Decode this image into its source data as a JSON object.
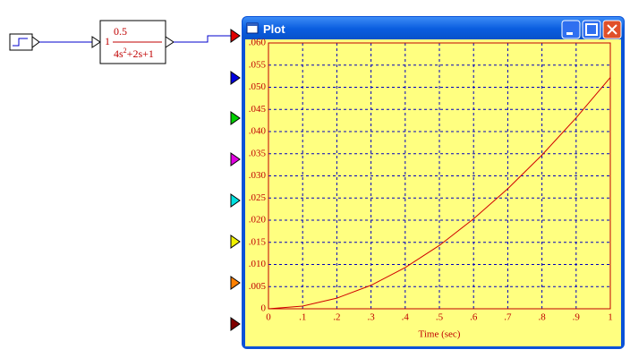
{
  "diagram": {
    "gain_block": {
      "gain": "1",
      "numerator": "0.5",
      "denominator": {
        "base": "4s",
        "exponent": "2",
        "rest": "+2s+1"
      }
    }
  },
  "window": {
    "title": "Plot"
  },
  "chart_data": {
    "type": "line",
    "xlabel": "Time (sec)",
    "x": [
      0,
      0.1,
      0.2,
      0.3,
      0.4,
      0.5,
      0.6,
      0.7,
      0.8,
      0.9,
      1
    ],
    "series": [
      {
        "color": "#d00000",
        "values": [
          0,
          0.0006,
          0.0024,
          0.0053,
          0.0093,
          0.0143,
          0.0203,
          0.0271,
          0.0347,
          0.0431,
          0.0522
        ]
      }
    ],
    "xlim": [
      0,
      1
    ],
    "ylim": [
      0,
      0.06
    ],
    "xticks": [
      0,
      {
        "value": 0.1,
        "label": ".1"
      },
      {
        "value": 0.2,
        "label": ".2"
      },
      {
        "value": 0.3,
        "label": ".3"
      },
      {
        "value": 0.4,
        "label": ".4"
      },
      {
        "value": 0.5,
        "label": ".5"
      },
      {
        "value": 0.6,
        "label": ".6"
      },
      {
        "value": 0.7,
        "label": ".7"
      },
      {
        "value": 0.8,
        "label": ".8"
      },
      {
        "value": 0.9,
        "label": ".9"
      },
      1
    ],
    "yticks": [
      0,
      {
        "value": 0.005,
        "label": ".005"
      },
      {
        "value": 0.01,
        "label": ".010"
      },
      {
        "value": 0.015,
        "label": ".015"
      },
      {
        "value": 0.02,
        "label": ".020"
      },
      {
        "value": 0.025,
        "label": ".025"
      },
      {
        "value": 0.03,
        "label": ".030"
      },
      {
        "value": 0.035,
        "label": ".035"
      },
      {
        "value": 0.04,
        "label": ".040"
      },
      {
        "value": 0.045,
        "label": ".045"
      },
      {
        "value": 0.05,
        "label": ".050"
      },
      {
        "value": 0.055,
        "label": ".055"
      },
      {
        "value": 0.06,
        "label": ".060"
      }
    ],
    "grid": true
  }
}
